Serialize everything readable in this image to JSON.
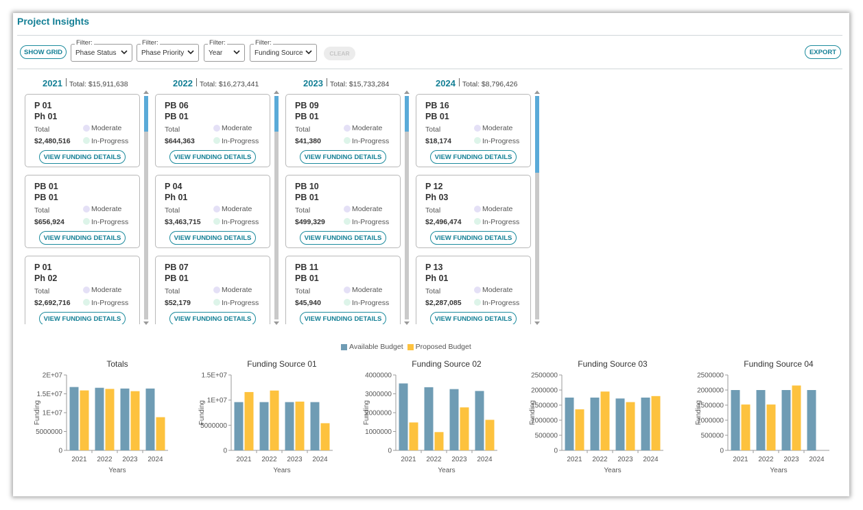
{
  "app": {
    "title": "Project Insights"
  },
  "toolbar": {
    "show_grid": "SHOW GRID",
    "export": "EXPORT",
    "clear": "CLEAR",
    "filter_label": "Filter:",
    "filters": [
      {
        "label": "Filter:",
        "value": "Phase Status"
      },
      {
        "label": "Filter:",
        "value": "Phase Priority"
      },
      {
        "label": "Filter:",
        "value": "Year"
      },
      {
        "label": "Filter:",
        "value": "Funding Source"
      }
    ]
  },
  "card_labels": {
    "total": "Total",
    "button": "VIEW FUNDING DETAILS"
  },
  "colors": {
    "available": "#6f9cb4",
    "proposed": "#fdc23e",
    "accent": "#137f95",
    "moderate_dot": "#e4e0f6",
    "inprogress_dot": "#ddf4e9"
  },
  "columns": [
    {
      "year": "2021",
      "total": "Total: $15,911,638",
      "cards": [
        {
          "line1": "P 01",
          "line2": "Ph 01",
          "amount": "$2,480,516",
          "priority": "Moderate",
          "status": "In-Progress"
        },
        {
          "line1": "PB 01",
          "line2": "PB 01",
          "amount": "$656,924",
          "priority": "Moderate",
          "status": "In-Progress"
        },
        {
          "line1": "P 01",
          "line2": "Ph 02",
          "amount": "$2,692,716",
          "priority": "Moderate",
          "status": "In-Progress"
        }
      ]
    },
    {
      "year": "2022",
      "total": "Total: $16,273,441",
      "cards": [
        {
          "line1": "PB 06",
          "line2": "PB 01",
          "amount": "$644,363",
          "priority": "Moderate",
          "status": "In-Progress"
        },
        {
          "line1": "P 04",
          "line2": "Ph 01",
          "amount": "$3,463,715",
          "priority": "Moderate",
          "status": "In-Progress"
        },
        {
          "line1": "PB 07",
          "line2": "PB 01",
          "amount": "$52,179",
          "priority": "Moderate",
          "status": "In-Progress"
        }
      ]
    },
    {
      "year": "2023",
      "total": "Total: $15,733,284",
      "cards": [
        {
          "line1": "PB 09",
          "line2": "PB 01",
          "amount": "$41,380",
          "priority": "Moderate",
          "status": "In-Progress"
        },
        {
          "line1": "PB 10",
          "line2": "PB 01",
          "amount": "$499,329",
          "priority": "Moderate",
          "status": "In-Progress"
        },
        {
          "line1": "PB 11",
          "line2": "PB 01",
          "amount": "$45,940",
          "priority": "Moderate",
          "status": "In-Progress"
        }
      ]
    },
    {
      "year": "2024",
      "total": "Total: $8,796,426",
      "cards": [
        {
          "line1": "PB 16",
          "line2": "PB 01",
          "amount": "$18,174",
          "priority": "Moderate",
          "status": "In-Progress"
        },
        {
          "line1": "P 12",
          "line2": "Ph 03",
          "amount": "$2,496,474",
          "priority": "Moderate",
          "status": "In-Progress"
        },
        {
          "line1": "P 13",
          "line2": "Ph 01",
          "amount": "$2,287,085",
          "priority": "Moderate",
          "status": "In-Progress"
        }
      ]
    }
  ],
  "legend": {
    "available": "Available Budget",
    "proposed": "Proposed Budget"
  },
  "chart_data": [
    {
      "type": "bar",
      "title": "Totals",
      "xlabel": "Years",
      "ylabel": "Funding",
      "categories": [
        "2021",
        "2022",
        "2023",
        "2024"
      ],
      "yticks": [
        "0",
        "5000000",
        "1E+07",
        "1.5E+07",
        "2E+07"
      ],
      "ylim": [
        0,
        20000000
      ],
      "series": [
        {
          "name": "Available Budget",
          "values": [
            16800000,
            16600000,
            16400000,
            16400000
          ]
        },
        {
          "name": "Proposed Budget",
          "values": [
            15900000,
            16300000,
            15700000,
            8800000
          ]
        }
      ]
    },
    {
      "type": "bar",
      "title": "Funding Source 01",
      "xlabel": "Years",
      "ylabel": "Funding",
      "categories": [
        "2021",
        "2022",
        "2023",
        "2024"
      ],
      "yticks": [
        "0",
        "5000000",
        "1E+07",
        "1.5E+07"
      ],
      "ylim": [
        0,
        15000000
      ],
      "series": [
        {
          "name": "Available Budget",
          "values": [
            9600000,
            9600000,
            9600000,
            9600000
          ]
        },
        {
          "name": "Proposed Budget",
          "values": [
            11600000,
            11900000,
            9700000,
            5400000
          ]
        }
      ]
    },
    {
      "type": "bar",
      "title": "Funding Source 02",
      "xlabel": "Years",
      "ylabel": "Funding",
      "categories": [
        "2021",
        "2022",
        "2023",
        "2024"
      ],
      "yticks": [
        "0",
        "1000000",
        "2000000",
        "3000000",
        "4000000"
      ],
      "ylim": [
        0,
        4000000
      ],
      "series": [
        {
          "name": "Available Budget",
          "values": [
            3550000,
            3350000,
            3250000,
            3150000
          ]
        },
        {
          "name": "Proposed Budget",
          "values": [
            1480000,
            970000,
            2280000,
            1620000
          ]
        }
      ]
    },
    {
      "type": "bar",
      "title": "Funding Source 03",
      "xlabel": "Years",
      "ylabel": "Funding",
      "categories": [
        "2021",
        "2022",
        "2023",
        "2024"
      ],
      "yticks": [
        "0",
        "500000",
        "1000000",
        "1500000",
        "2000000",
        "2500000"
      ],
      "ylim": [
        0,
        2500000
      ],
      "series": [
        {
          "name": "Available Budget",
          "values": [
            1750000,
            1750000,
            1720000,
            1750000
          ]
        },
        {
          "name": "Proposed Budget",
          "values": [
            1360000,
            1950000,
            1600000,
            1800000
          ]
        }
      ]
    },
    {
      "type": "bar",
      "title": "Funding Source 04",
      "xlabel": "Years",
      "ylabel": "Funding",
      "categories": [
        "2021",
        "2022",
        "2023",
        "2024"
      ],
      "yticks": [
        "0",
        "500000",
        "1000000",
        "1500000",
        "2000000",
        "2500000"
      ],
      "ylim": [
        0,
        2500000
      ],
      "series": [
        {
          "name": "Available Budget",
          "values": [
            2000000,
            2000000,
            2000000,
            2000000
          ]
        },
        {
          "name": "Proposed Budget",
          "values": [
            1520000,
            1520000,
            2150000,
            0
          ]
        }
      ]
    }
  ]
}
